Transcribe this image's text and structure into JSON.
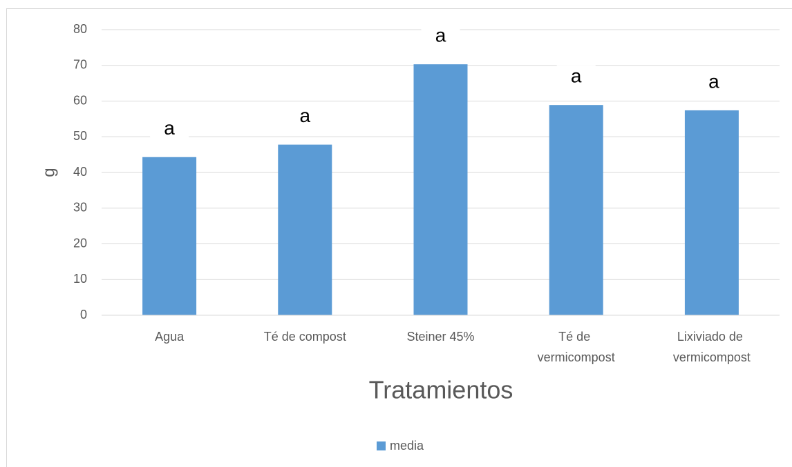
{
  "chart_data": {
    "type": "bar",
    "categories": [
      "Agua",
      "Té de compost",
      "Steiner 45%",
      "Té de vermicompost",
      "Lixiviado de vermicompost"
    ],
    "series": [
      {
        "name": "media",
        "color": "#5b9bd5",
        "values": [
          44.3,
          47.8,
          70.3,
          58.9,
          57.4
        ]
      }
    ],
    "annotations": [
      "a",
      "a",
      "a",
      "a",
      "a"
    ],
    "y_label": "g",
    "x_label": "Tratamientos",
    "ylim": [
      0,
      80
    ],
    "yticks": [
      0,
      10,
      20,
      30,
      40,
      50,
      60,
      70,
      80
    ],
    "grid": true,
    "legend": "bottom"
  }
}
